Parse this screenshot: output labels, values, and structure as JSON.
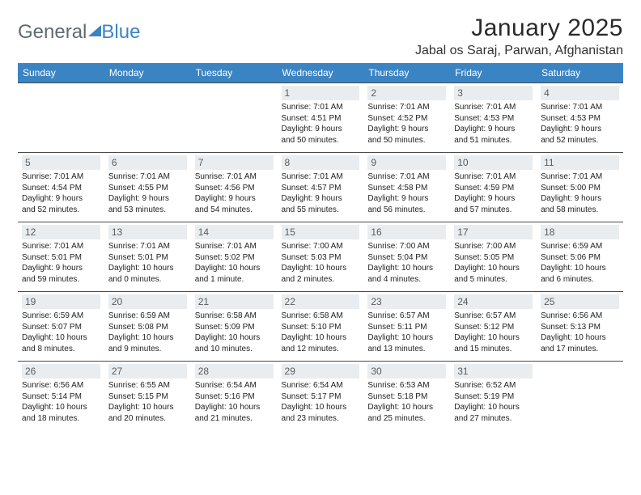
{
  "logo": {
    "text1": "General",
    "text2": "Blue"
  },
  "title": "January 2025",
  "location": "Jabal os Saraj, Parwan, Afghanistan",
  "style": {
    "header_bg": "#3b84c4",
    "header_fg": "#ffffff",
    "daynum_bg": "#e9edf0",
    "daynum_fg": "#5b5b5b",
    "rule_color": "#4a4a4a",
    "page_bg": "#ffffff",
    "body_text": "#222222",
    "title_color": "#2a2a2a",
    "logo_gray": "#5f6a72",
    "logo_blue": "#3b84c4",
    "month_title_fontsize": 30,
    "location_fontsize": 16,
    "header_fontsize": 12,
    "daynum_fontsize": 12,
    "cell_fontsize": 10
  },
  "dayNames": [
    "Sunday",
    "Monday",
    "Tuesday",
    "Wednesday",
    "Thursday",
    "Friday",
    "Saturday"
  ],
  "weeks": [
    [
      null,
      null,
      null,
      {
        "n": "1",
        "sr": "7:01 AM",
        "ss": "4:51 PM",
        "dl": "9 hours and 50 minutes."
      },
      {
        "n": "2",
        "sr": "7:01 AM",
        "ss": "4:52 PM",
        "dl": "9 hours and 50 minutes."
      },
      {
        "n": "3",
        "sr": "7:01 AM",
        "ss": "4:53 PM",
        "dl": "9 hours and 51 minutes."
      },
      {
        "n": "4",
        "sr": "7:01 AM",
        "ss": "4:53 PM",
        "dl": "9 hours and 52 minutes."
      }
    ],
    [
      {
        "n": "5",
        "sr": "7:01 AM",
        "ss": "4:54 PM",
        "dl": "9 hours and 52 minutes."
      },
      {
        "n": "6",
        "sr": "7:01 AM",
        "ss": "4:55 PM",
        "dl": "9 hours and 53 minutes."
      },
      {
        "n": "7",
        "sr": "7:01 AM",
        "ss": "4:56 PM",
        "dl": "9 hours and 54 minutes."
      },
      {
        "n": "8",
        "sr": "7:01 AM",
        "ss": "4:57 PM",
        "dl": "9 hours and 55 minutes."
      },
      {
        "n": "9",
        "sr": "7:01 AM",
        "ss": "4:58 PM",
        "dl": "9 hours and 56 minutes."
      },
      {
        "n": "10",
        "sr": "7:01 AM",
        "ss": "4:59 PM",
        "dl": "9 hours and 57 minutes."
      },
      {
        "n": "11",
        "sr": "7:01 AM",
        "ss": "5:00 PM",
        "dl": "9 hours and 58 minutes."
      }
    ],
    [
      {
        "n": "12",
        "sr": "7:01 AM",
        "ss": "5:01 PM",
        "dl": "9 hours and 59 minutes."
      },
      {
        "n": "13",
        "sr": "7:01 AM",
        "ss": "5:01 PM",
        "dl": "10 hours and 0 minutes."
      },
      {
        "n": "14",
        "sr": "7:01 AM",
        "ss": "5:02 PM",
        "dl": "10 hours and 1 minute."
      },
      {
        "n": "15",
        "sr": "7:00 AM",
        "ss": "5:03 PM",
        "dl": "10 hours and 2 minutes."
      },
      {
        "n": "16",
        "sr": "7:00 AM",
        "ss": "5:04 PM",
        "dl": "10 hours and 4 minutes."
      },
      {
        "n": "17",
        "sr": "7:00 AM",
        "ss": "5:05 PM",
        "dl": "10 hours and 5 minutes."
      },
      {
        "n": "18",
        "sr": "6:59 AM",
        "ss": "5:06 PM",
        "dl": "10 hours and 6 minutes."
      }
    ],
    [
      {
        "n": "19",
        "sr": "6:59 AM",
        "ss": "5:07 PM",
        "dl": "10 hours and 8 minutes."
      },
      {
        "n": "20",
        "sr": "6:59 AM",
        "ss": "5:08 PM",
        "dl": "10 hours and 9 minutes."
      },
      {
        "n": "21",
        "sr": "6:58 AM",
        "ss": "5:09 PM",
        "dl": "10 hours and 10 minutes."
      },
      {
        "n": "22",
        "sr": "6:58 AM",
        "ss": "5:10 PM",
        "dl": "10 hours and 12 minutes."
      },
      {
        "n": "23",
        "sr": "6:57 AM",
        "ss": "5:11 PM",
        "dl": "10 hours and 13 minutes."
      },
      {
        "n": "24",
        "sr": "6:57 AM",
        "ss": "5:12 PM",
        "dl": "10 hours and 15 minutes."
      },
      {
        "n": "25",
        "sr": "6:56 AM",
        "ss": "5:13 PM",
        "dl": "10 hours and 17 minutes."
      }
    ],
    [
      {
        "n": "26",
        "sr": "6:56 AM",
        "ss": "5:14 PM",
        "dl": "10 hours and 18 minutes."
      },
      {
        "n": "27",
        "sr": "6:55 AM",
        "ss": "5:15 PM",
        "dl": "10 hours and 20 minutes."
      },
      {
        "n": "28",
        "sr": "6:54 AM",
        "ss": "5:16 PM",
        "dl": "10 hours and 21 minutes."
      },
      {
        "n": "29",
        "sr": "6:54 AM",
        "ss": "5:17 PM",
        "dl": "10 hours and 23 minutes."
      },
      {
        "n": "30",
        "sr": "6:53 AM",
        "ss": "5:18 PM",
        "dl": "10 hours and 25 minutes."
      },
      {
        "n": "31",
        "sr": "6:52 AM",
        "ss": "5:19 PM",
        "dl": "10 hours and 27 minutes."
      },
      null
    ]
  ],
  "labels": {
    "sunrise": "Sunrise:",
    "sunset": "Sunset:",
    "daylight": "Daylight:"
  }
}
